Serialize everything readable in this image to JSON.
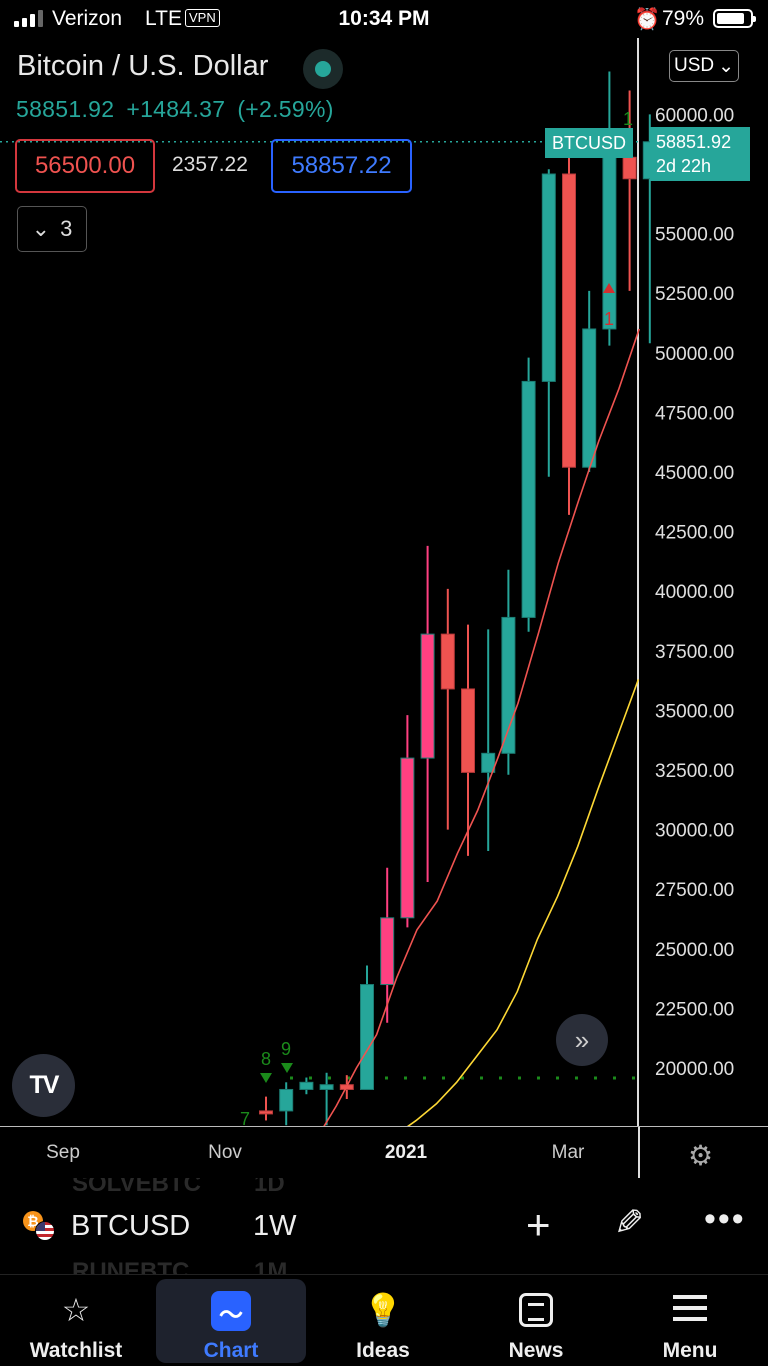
{
  "status_bar": {
    "carrier": "Verizon",
    "network": "LTE",
    "vpn": "VPN",
    "time": "10:34 PM",
    "battery": "79%"
  },
  "header": {
    "title": "Bitcoin / U.S. Dollar",
    "last_price": "58851.92",
    "change": "+1484.37",
    "change_pct": "(+2.59%)",
    "sell_price": "56500.00",
    "spread": "2357.22",
    "buy_price": "58857.22",
    "indicators_count": "3",
    "currency": "USD"
  },
  "price_tag": {
    "ticker": "BTCUSD",
    "price": "58851.92",
    "countdown": "2d 22h"
  },
  "chart_data": {
    "type": "candlestick",
    "symbol": "BTCUSD",
    "interval": "1W",
    "price_axis": [
      "60000.00",
      "57500.00",
      "55000.00",
      "52500.00",
      "50000.00",
      "47500.00",
      "45000.00",
      "42500.00",
      "40000.00",
      "37500.00",
      "35000.00",
      "32500.00",
      "30000.00",
      "27500.00",
      "25000.00",
      "22500.00",
      "20000.00"
    ],
    "time_axis": [
      "Sep",
      "Nov",
      "2021",
      "Mar"
    ],
    "ylim": [
      18000,
      62500
    ],
    "candles": [
      {
        "o": 18200,
        "h": 18800,
        "l": 17800,
        "c": 18100
      },
      {
        "o": 18200,
        "h": 19400,
        "l": 17600,
        "c": 19100
      },
      {
        "o": 19100,
        "h": 19600,
        "l": 18900,
        "c": 19400
      },
      {
        "o": 19100,
        "h": 19800,
        "l": 17600,
        "c": 19300
      },
      {
        "o": 19300,
        "h": 19700,
        "l": 18700,
        "c": 19100
      },
      {
        "o": 19100,
        "h": 24300,
        "l": 19100,
        "c": 23500
      },
      {
        "o": 23500,
        "h": 28400,
        "l": 21900,
        "c": 26300
      },
      {
        "o": 26300,
        "h": 34800,
        "l": 25900,
        "c": 33000
      },
      {
        "o": 33000,
        "h": 41900,
        "l": 27800,
        "c": 38200
      },
      {
        "o": 38200,
        "h": 40100,
        "l": 30000,
        "c": 35900
      },
      {
        "o": 35900,
        "h": 38600,
        "l": 28900,
        "c": 32400
      },
      {
        "o": 32400,
        "h": 38400,
        "l": 29100,
        "c": 33200
      },
      {
        "o": 33200,
        "h": 40900,
        "l": 32300,
        "c": 38900
      },
      {
        "o": 38900,
        "h": 49800,
        "l": 38300,
        "c": 48800
      },
      {
        "o": 48800,
        "h": 57700,
        "l": 44800,
        "c": 57500
      },
      {
        "o": 57500,
        "h": 58300,
        "l": 43200,
        "c": 45200
      },
      {
        "o": 45200,
        "h": 52600,
        "l": 45000,
        "c": 51000
      },
      {
        "o": 51000,
        "h": 61800,
        "l": 50300,
        "c": 58200
      },
      {
        "o": 58200,
        "h": 61000,
        "l": 52600,
        "c": 57300
      },
      {
        "o": 57300,
        "h": 60000,
        "l": 50400,
        "c": 58851.92
      }
    ],
    "ma_red": [
      17000,
      18400,
      20000,
      21400,
      23800,
      25800,
      27000,
      29000,
      30800,
      33000,
      35300,
      38200,
      41200,
      43800,
      46300,
      48500,
      51000
    ],
    "ma_yellow": [
      17200,
      17800,
      18500,
      19400,
      20500,
      21600,
      23200,
      25400,
      27200,
      29300,
      31700,
      34000,
      36300
    ],
    "td_markers": [
      {
        "text": "7",
        "color": "#1b8a1b"
      },
      {
        "text": "8",
        "color": "#1b8a1b"
      },
      {
        "text": "9",
        "color": "#1b8a1b"
      },
      {
        "text": "1",
        "color": "#d32f2f"
      },
      {
        "text": "1",
        "color": "#1b8a1b"
      }
    ],
    "colors": {
      "up": "#26a69a",
      "down": "#ef5350",
      "up_highlight": "#ff4081",
      "ma_red": "#ef5350",
      "ma_yellow": "#fdd835"
    }
  },
  "symbol_bar": {
    "symbol": "BTCUSD",
    "interval": "1W",
    "ghost_top": "SOLVEBTC",
    "ghost_top_int": "1D",
    "ghost_bottom": "RUNEBTC",
    "ghost_bottom_int": "1M"
  },
  "nav": [
    {
      "label": "Watchlist",
      "icon": "star-icon"
    },
    {
      "label": "Chart",
      "icon": "chart-icon",
      "active": true
    },
    {
      "label": "Ideas",
      "icon": "lightbulb-icon"
    },
    {
      "label": "News",
      "icon": "news-icon"
    },
    {
      "label": "Menu",
      "icon": "menu-icon"
    }
  ]
}
